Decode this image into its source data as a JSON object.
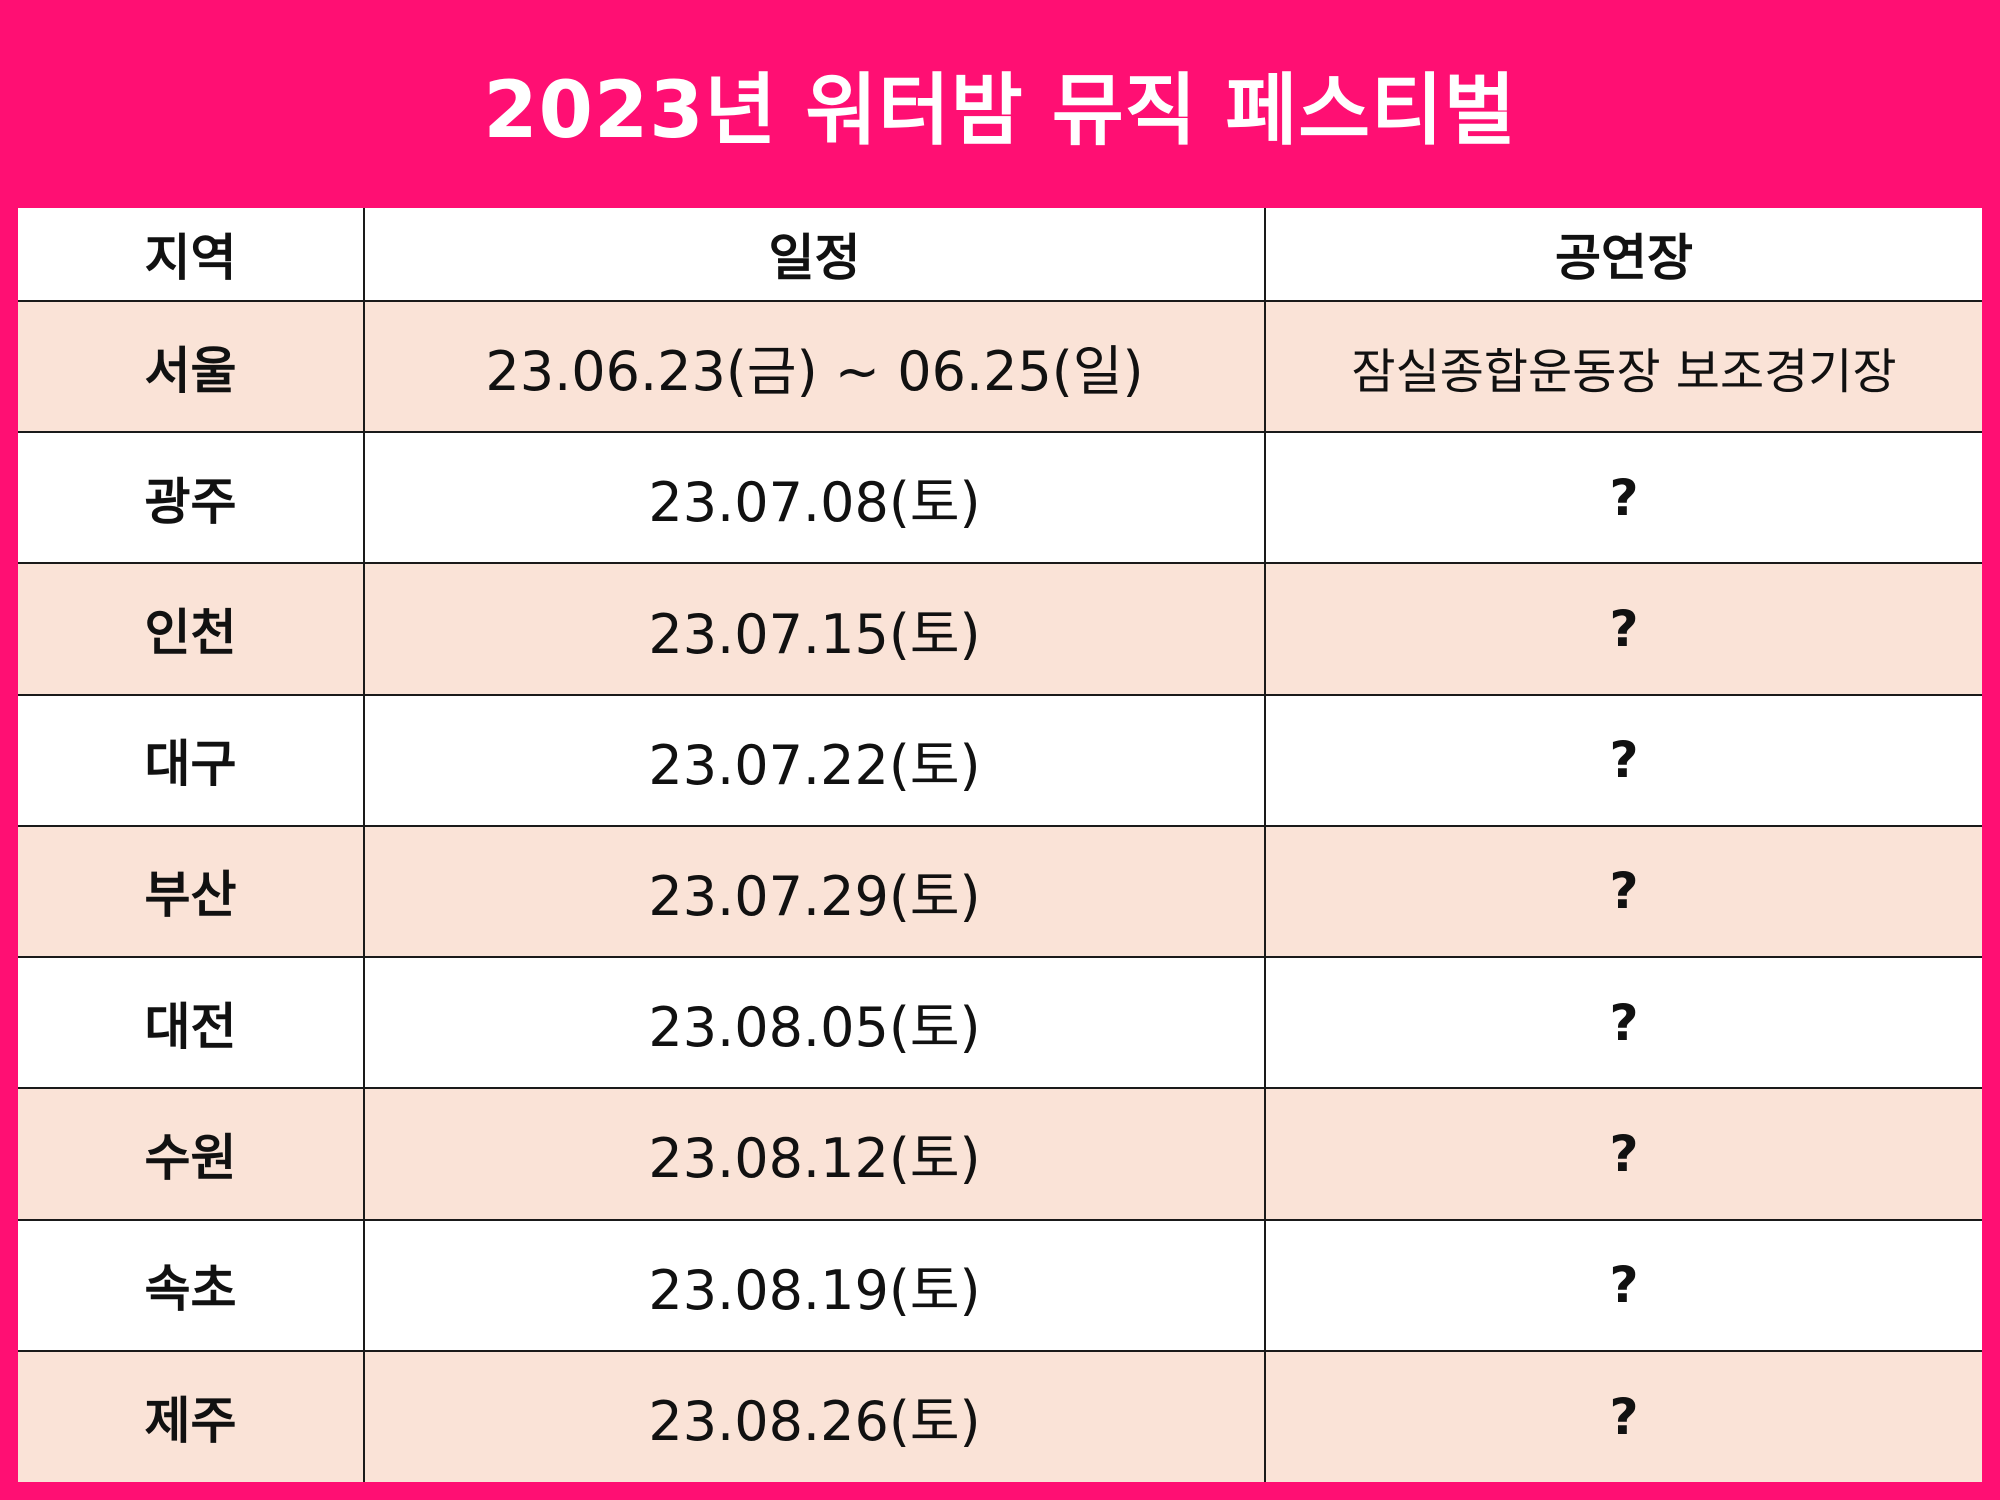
{
  "title": "2023년 워터밤 뮤직 페스티벌",
  "colors": {
    "background": "#ff0f73",
    "row_alt": "#fae3d7",
    "row_plain": "#ffffff"
  },
  "table": {
    "headers": {
      "region": "지역",
      "schedule": "일정",
      "venue": "공연장"
    },
    "rows": [
      {
        "region": "서울",
        "schedule": "23.06.23(금) ~ 06.25(일)",
        "venue": "잠실종합운동장 보조경기장"
      },
      {
        "region": "광주",
        "schedule": "23.07.08(토)",
        "venue": "?"
      },
      {
        "region": "인천",
        "schedule": "23.07.15(토)",
        "venue": "?"
      },
      {
        "region": "대구",
        "schedule": "23.07.22(토)",
        "venue": "?"
      },
      {
        "region": "부산",
        "schedule": "23.07.29(토)",
        "venue": "?"
      },
      {
        "region": "대전",
        "schedule": "23.08.05(토)",
        "venue": "?"
      },
      {
        "region": "수원",
        "schedule": "23.08.12(토)",
        "venue": "?"
      },
      {
        "region": "속초",
        "schedule": "23.08.19(토)",
        "venue": "?"
      },
      {
        "region": "제주",
        "schedule": "23.08.26(토)",
        "venue": "?"
      }
    ]
  }
}
